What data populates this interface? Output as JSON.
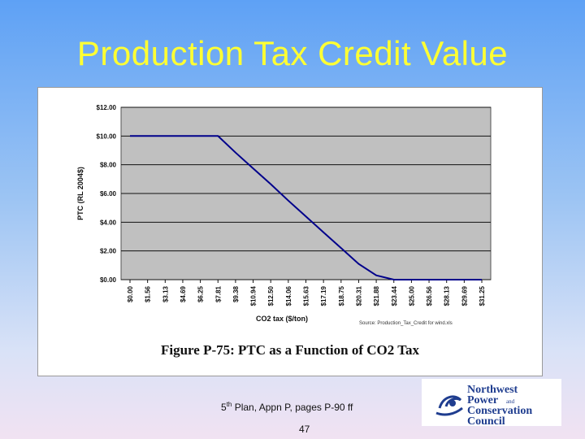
{
  "slide": {
    "title": "Production Tax Credit Value",
    "footnote_prefix": "5",
    "footnote_sup": "th",
    "footnote_rest": " Plan, Appn P, pages P-90 ff",
    "page_number": "47"
  },
  "figure": {
    "caption": "Figure P-75:  PTC as a Function of CO2 Tax",
    "source_note": "Source:  Production_Tax_Credit for wind.xls"
  },
  "logo": {
    "line1": "Northwest",
    "line2": "Power",
    "line2_small": "and",
    "line3": "Conservation",
    "line4": "Council",
    "colors": {
      "text": "#1f3d8f",
      "wave": "#1f3d8f"
    }
  },
  "chart_data": {
    "type": "line",
    "x": [
      "$0.00",
      "$1.56",
      "$3.13",
      "$4.69",
      "$6.25",
      "$7.81",
      "$9.38",
      "$10.94",
      "$12.50",
      "$14.06",
      "$15.63",
      "$17.19",
      "$18.75",
      "$20.31",
      "$21.88",
      "$23.44",
      "$25.00",
      "$26.56",
      "$28.13",
      "$29.69",
      "$31.25"
    ],
    "series": [
      {
        "values": [
          10.0,
          10.0,
          10.0,
          10.0,
          10.0,
          10.0,
          8.85,
          7.75,
          6.65,
          5.5,
          4.4,
          3.3,
          2.2,
          1.1,
          0.3,
          0.0,
          0.0,
          0.0,
          0.0,
          0.0,
          0.0
        ]
      }
    ],
    "xlabel": "CO2 tax ($/ton)",
    "ylabel": "PTC (RL 2004$)",
    "ylim": [
      0,
      12
    ],
    "yticks": [
      "$0.00",
      "$2.00",
      "$4.00",
      "$6.00",
      "$8.00",
      "$10.00",
      "$12.00"
    ],
    "grid": true,
    "colors": {
      "plot_background": "#c0c0c0",
      "line": "#00008b"
    }
  }
}
